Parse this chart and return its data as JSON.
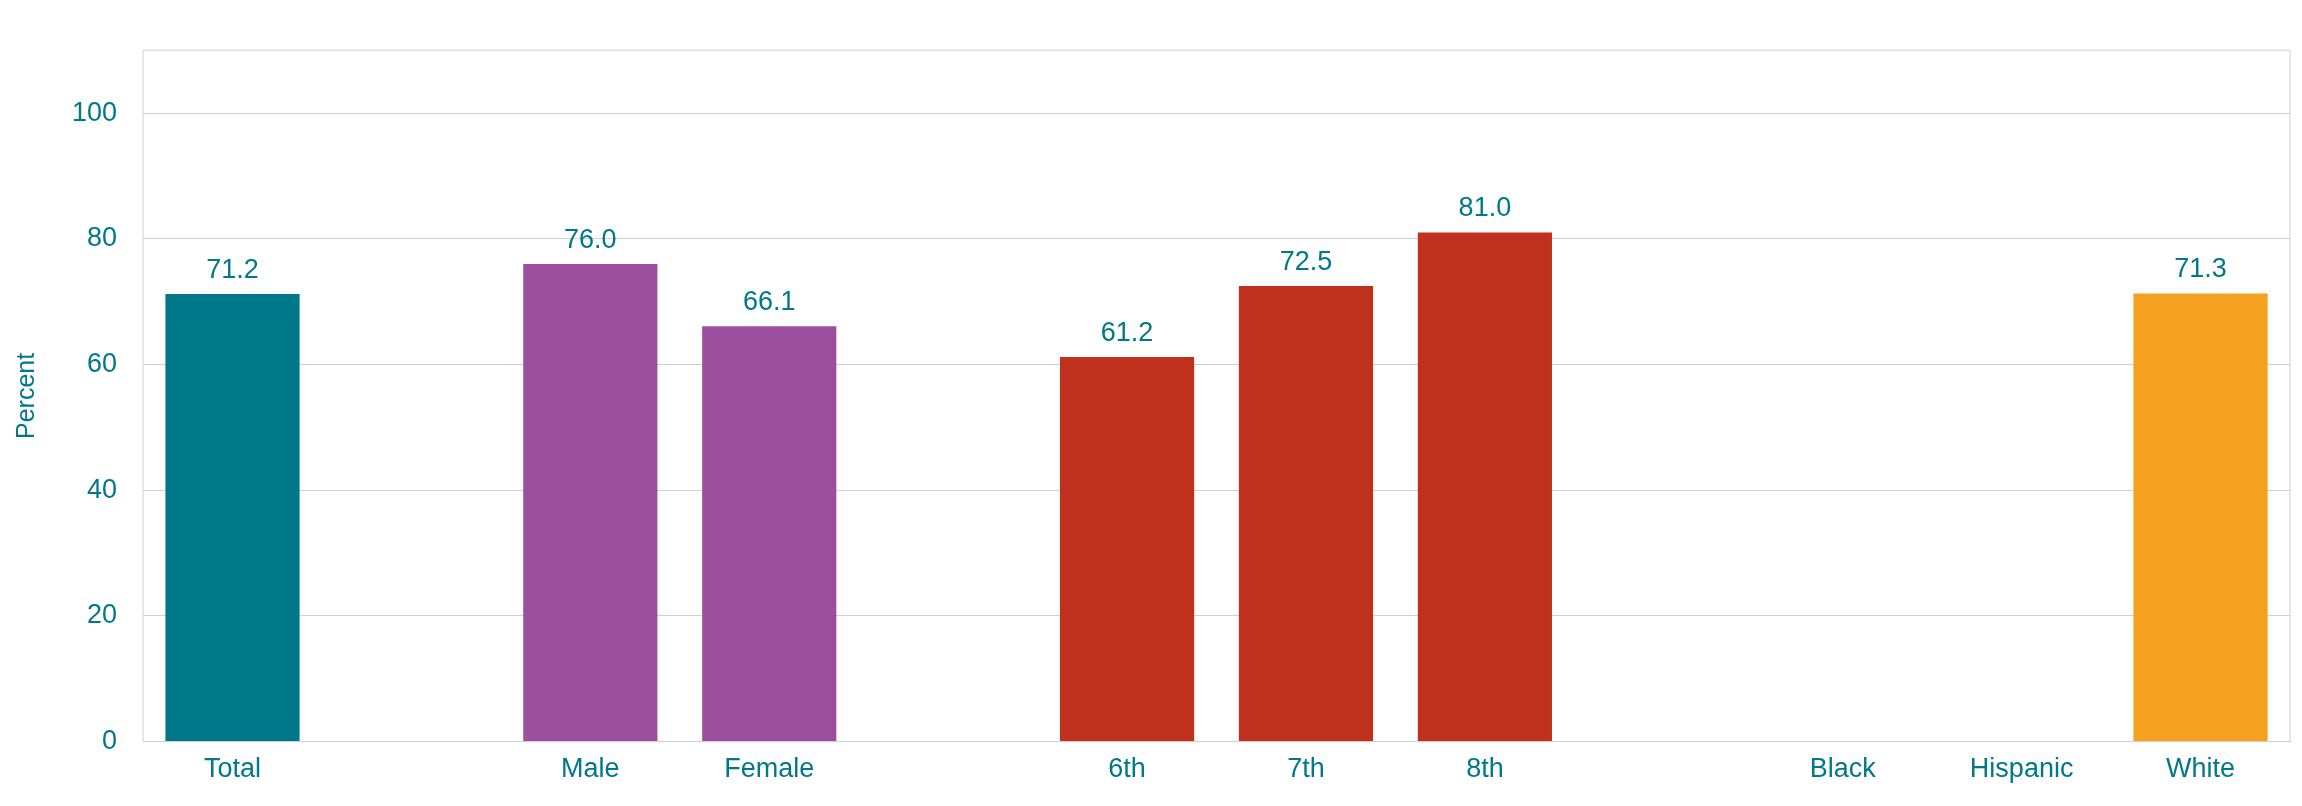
{
  "chart_data": {
    "type": "bar",
    "ylabel": "Percent",
    "categories": [
      "Total",
      null,
      "Male",
      "Female",
      null,
      "6th",
      "7th",
      "8th",
      null,
      "Black",
      "Hispanic",
      "White"
    ],
    "values": [
      71.2,
      null,
      76.0,
      66.1,
      null,
      61.2,
      72.5,
      81.0,
      null,
      null,
      null,
      71.3
    ],
    "colors": [
      "#00788a",
      "#00788a",
      "#9b4f9e",
      "#9b4f9e",
      "#bf311d",
      "#bf311d",
      "#bf311d",
      "#bf311d",
      "#f5a01f",
      "#f5a01f",
      "#f5a01f",
      "#f5a01f"
    ],
    "value_labels": [
      "71.2",
      null,
      "76.0",
      "66.1",
      null,
      "61.2",
      "72.5",
      "81.0",
      null,
      null,
      null,
      "71.3"
    ],
    "ylim": [
      0,
      110
    ],
    "yticks": [
      0,
      20,
      40,
      60,
      80,
      100
    ],
    "grid": "y",
    "legend": false
  }
}
